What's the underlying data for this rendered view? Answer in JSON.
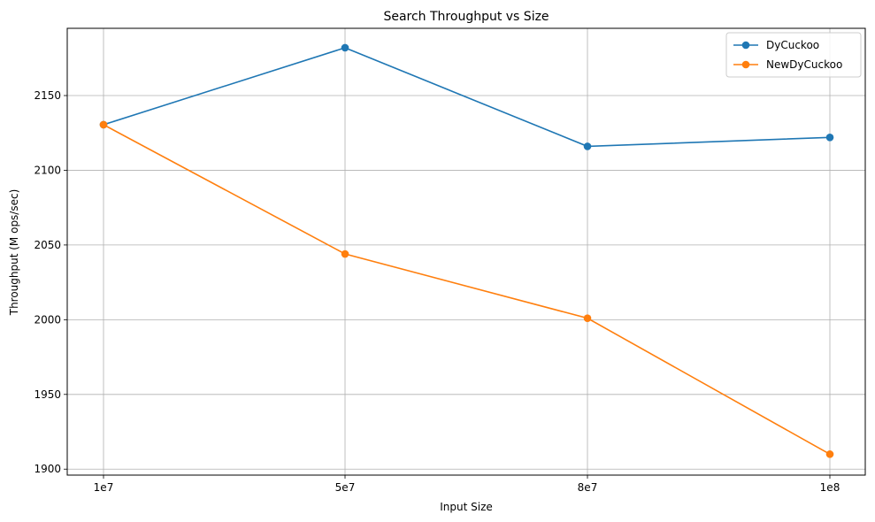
{
  "chart_data": {
    "type": "line",
    "title": "Search Throughput vs Size",
    "xlabel": "Input Size",
    "ylabel": "Throughput (M ops/sec)",
    "categories": [
      "1e7",
      "5e7",
      "8e7",
      "1e8"
    ],
    "ylim": [
      1896,
      2195
    ],
    "yticks": [
      1900,
      1950,
      2000,
      2050,
      2100,
      2150
    ],
    "grid": true,
    "legend_position": "top-right",
    "series": [
      {
        "name": "DyCuckoo",
        "color": "#1f77b4",
        "values": [
          2130.5,
          2182,
          2116,
          2122
        ]
      },
      {
        "name": "NewDyCuckoo",
        "color": "#ff7f0e",
        "values": [
          2130.5,
          2044,
          2001,
          1910
        ]
      }
    ]
  }
}
